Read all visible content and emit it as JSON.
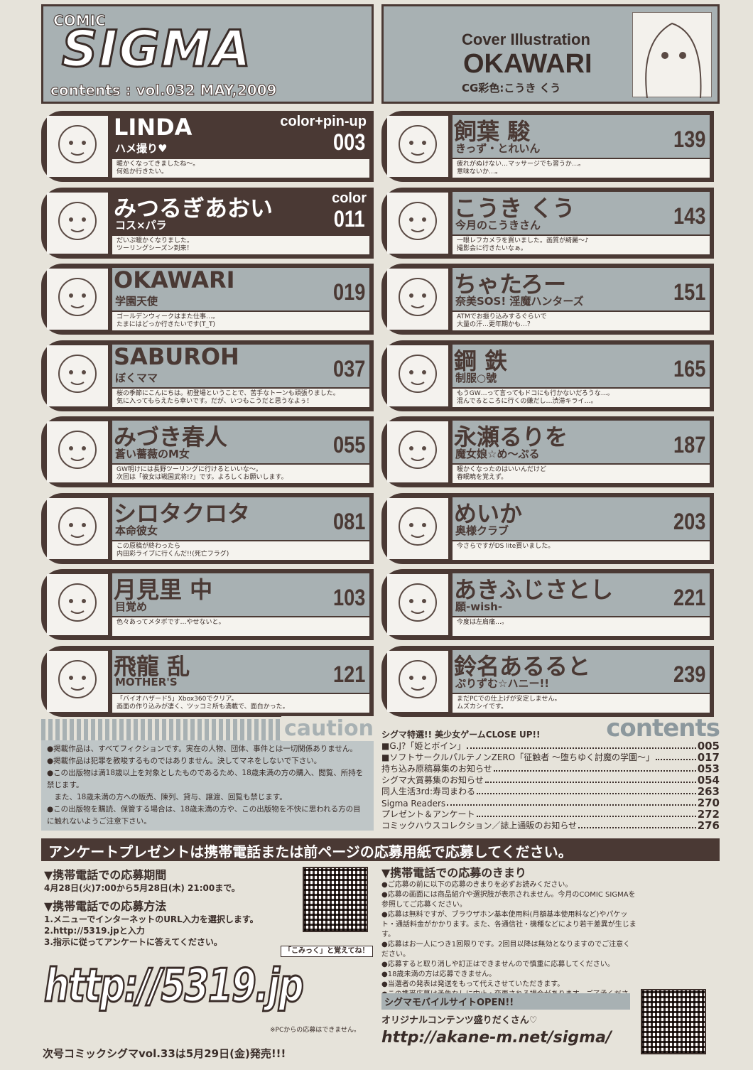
{
  "header": {
    "logo_comic": "COMIC",
    "logo_sigma": "SIGMA",
    "volume": "contents : vol.032 MAY,2009",
    "cover_label": "Cover Illustration",
    "cover_artist": "OKAWARI",
    "cg_color": "CG彩色:こうき くう"
  },
  "entries_left": [
    {
      "title": "LINDA",
      "subtitle": "ハメ撮り♥",
      "tag": "color+pin-up",
      "page": "003",
      "comment": "暖かくなってきましたね～。\n何処か行きたい。",
      "dark": true
    },
    {
      "title": "みつるぎあおい",
      "subtitle": "コス×パラ",
      "tag": "color",
      "page": "011",
      "comment": "だいぶ暖かくなりました。\nツーリングシーズン到来！",
      "dark": true
    },
    {
      "title": "OKAWARI",
      "subtitle": "学園天使",
      "page": "019",
      "comment": "ゴールデンウィークはまた仕事…。\nたまにはどっか行きたいです(T_T)"
    },
    {
      "title": "SABUROH",
      "subtitle": "ぼくママ",
      "page": "037",
      "comment": "桜の季節にこんにちは。初登場ということで、苦手なトーンも頑張りました。\n気に入ってもらえたら幸いです。だが、いつもこうだと思うなよぅ！"
    },
    {
      "title": "みづき春人",
      "subtitle": "蒼い薔薇のM女",
      "page": "055",
      "comment": "GW明けには長野ツーリングに行けるといいな～。\n次回は「彼女は戦国武将!?」です。よろしくお願いします。"
    },
    {
      "title": "シロタクロタ",
      "subtitle": "本命彼女",
      "page": "081",
      "comment": "この原稿が終わったら\n内田彩ライブに行くんだ!!(死亡フラグ)"
    },
    {
      "title": "月見里 中",
      "subtitle": "目覚め",
      "page": "103",
      "comment": "色々あってメタボです…やせないと。"
    },
    {
      "title": "飛龍 乱",
      "subtitle": "MOTHER'S",
      "page": "121",
      "comment": "「バイオハザード5」Xbox360でクリア。\n画面の作り込みが凄く、ツッコミ所も満載で、面白かった。"
    }
  ],
  "entries_right": [
    {
      "title": "飼葉 駿",
      "subtitle": "きっず・とれいん",
      "page": "139",
      "comment": "疲れがぬけない…マッサージでも習うか…。\n意味ないか…。"
    },
    {
      "title": "こうき くう",
      "subtitle": "今月のこうきさん",
      "page": "143",
      "comment": "一眼レフカメラを買いました。画質が綺麗～♪\n撮影会に行きたいなぁ。"
    },
    {
      "title": "ちゃたろー",
      "subtitle": "奈美SOS! 淫魔ハンターズ",
      "page": "151",
      "comment": "ATMでお振り込みするぐらいで\n大量の汗…更年期かも…？"
    },
    {
      "title": "鋼 鉄",
      "subtitle": "制服○號",
      "page": "165",
      "comment": "もうGW…って言ってもドコにも行かないだろうな…。\n混んでるところに行くの嫌だし…渋滞キライ…。"
    },
    {
      "title": "永瀬るりを",
      "subtitle": "魔女娘☆め～ぷる",
      "page": "187",
      "comment": "暖かくなったのはいいんだけど\n春眠暁を覚えず。"
    },
    {
      "title": "めいか",
      "subtitle": "奥様クラブ",
      "page": "203",
      "comment": "今さらですがDS lite買いました。"
    },
    {
      "title": "あきふじさとし",
      "subtitle": "願-wish-",
      "page": "221",
      "comment": "今度は左肩痛…。"
    },
    {
      "title": "鈴名あるると",
      "subtitle": "ぷりずむ☆ハニー!!",
      "page": "239",
      "comment": "まだPCでの仕上げが安定しません。\nムズカシイです。"
    }
  ],
  "caution": {
    "heading": "caution",
    "lines": [
      "●掲載作品は、すべてフィクションです。実在の人物、団体、事件とは一切関係ありません。",
      "●掲載作品は犯罪を教唆するものではありません。決してマネをしないで下さい。",
      "●この出版物は満18歳以上を対象としたものであるため、18歳未満の方の購入、閲覧、所持を禁じます。",
      "　また、18歳未満の方への販売、陳列、貸与、譲渡、回覧も禁じます。",
      "●この出版物を購読、保管する場合は、18歳未満の方や、この出版物を不快に思われる方の目に触れないようご注意下さい。"
    ]
  },
  "contents": {
    "heading": "contents",
    "feature": "シグマ特選!! 美少女ゲームCLOSE UP!!",
    "items": [
      {
        "label": "■G.J?「姫とボイン」",
        "page": "005"
      },
      {
        "label": "■ソフトサークルパルテノンZERO「征触者 ～堕ちゆく討魔の学園～」",
        "page": "017"
      },
      {
        "label": "持ち込み原稿募集のお知らせ",
        "page": "053"
      },
      {
        "label": "シグマ大賞募集のお知らせ",
        "page": "054"
      },
      {
        "label": "同人生活3rd:寿司まわる",
        "page": "263"
      },
      {
        "label": "Sigma Readers",
        "page": "270"
      },
      {
        "label": "プレゼント＆アンケート",
        "page": "272"
      },
      {
        "label": "コミックハウスコレクション／誌上通販のお知らせ",
        "page": "276"
      }
    ]
  },
  "banner": "アンケートプレゼントは携帯電話または前ページの応募用紙で応募してください。",
  "mobile": {
    "period_heading": "▼携帯電話での応募期間",
    "period": "4月28日(火)7:00から5月28日(木) 21:00まで。",
    "method_heading": "▼携帯電話での応募方法",
    "steps": [
      "1.メニューでインターネットのURL入力を選択します。",
      "2.http://5319.jpと入力",
      "3.指示に従ってアンケートに答えてください。"
    ],
    "memo": "「こみっく」と覚えてね！",
    "url": "http://5319.jp",
    "pc_note": "※PCからの応募はできません。",
    "rules_heading": "▼携帯電話での応募のきまり",
    "rules": [
      "●ご応募の前に以下の応募のきまりを必ずお読みください。",
      "●応募の画面には商品紹介や選択肢が表示されません。今月のCOMIC SIGMAを参照してご応募ください。",
      "●応募は無料ですが、ブラウザホン基本使用料(月額基本使用料など)やパケット・通話料金がかかります。また、各通信社・機種などにより若干差異が生じます。",
      "●応募はお一人につき1回限りです。2回目以降は無効となりますのでご注意ください。",
      "●応募すると取り消しや訂正はできませんので慎重に応募してください。",
      "●18歳未満の方は応募できません。",
      "●当選者の発表は発送をもって代えさせていただきます。",
      "●この携帯応募は予告なしに中止・変更される場合があります。ご了承ください。"
    ],
    "site_open": "シグマモバイルサイトOPEN!!",
    "site_desc": "オリジナルコンテンツ盛りだくさん♡",
    "site_url": "http://akane-m.net/sigma/"
  },
  "next_issue": "次号コミックシグマvol.33は5月29日(金)発売!!!",
  "colors": {
    "frame": "#4a3934",
    "panel": "#a8b1b3",
    "paper": "#e6e3da"
  }
}
